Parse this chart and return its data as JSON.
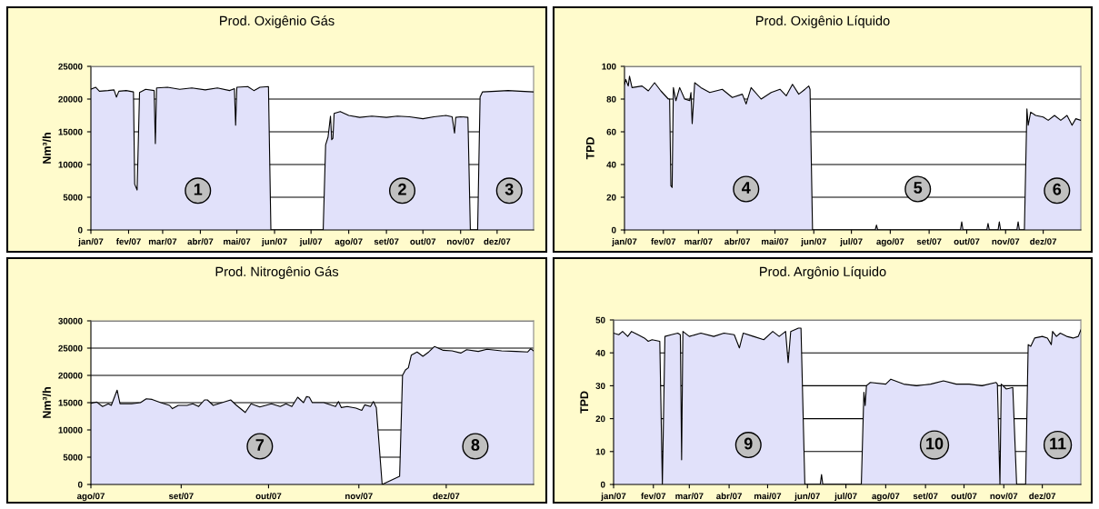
{
  "chart_data": [
    {
      "type": "area",
      "title": "Prod. Oxigênio Gás",
      "ylabel": "Nm³/h",
      "xlim": [
        "2007-01-01",
        "2007-12-31"
      ],
      "ylim": [
        0,
        25000
      ],
      "yticks": [
        0,
        5000,
        10000,
        15000,
        20000,
        25000
      ],
      "xticks": [
        {
          "value": "2007-01-01",
          "label": "jan/07"
        },
        {
          "value": "2007-02-01",
          "label": "fev/07"
        },
        {
          "value": "2007-03-01",
          "label": "mar/07"
        },
        {
          "value": "2007-04-01",
          "label": "abr/07"
        },
        {
          "value": "2007-05-01",
          "label": "mai/07"
        },
        {
          "value": "2007-06-01",
          "label": "jun/07"
        },
        {
          "value": "2007-07-01",
          "label": "jul/07"
        },
        {
          "value": "2007-08-01",
          "label": "ago/07"
        },
        {
          "value": "2007-09-01",
          "label": "set/07"
        },
        {
          "value": "2007-10-01",
          "label": "out/07"
        },
        {
          "value": "2007-11-01",
          "label": "nov/07"
        },
        {
          "value": "2007-12-01",
          "label": "dez/07"
        }
      ],
      "grid": "y",
      "x": [
        "2007-01-01",
        "2007-01-05",
        "2007-01-08",
        "2007-01-15",
        "2007-01-20",
        "2007-01-22",
        "2007-01-24",
        "2007-01-30",
        "2007-02-05",
        "2007-02-06",
        "2007-02-08",
        "2007-02-10",
        "2007-02-15",
        "2007-02-22",
        "2007-02-23",
        "2007-02-24",
        "2007-03-05",
        "2007-03-15",
        "2007-03-25",
        "2007-04-05",
        "2007-04-15",
        "2007-04-25",
        "2007-04-29",
        "2007-04-30",
        "2007-05-01",
        "2007-05-10",
        "2007-05-15",
        "2007-05-20",
        "2007-05-27",
        "2007-05-29",
        "2007-07-11",
        "2007-07-13",
        "2007-07-15",
        "2007-07-17",
        "2007-07-18",
        "2007-07-19",
        "2007-07-20",
        "2007-07-25",
        "2007-08-01",
        "2007-08-10",
        "2007-08-20",
        "2007-09-01",
        "2007-09-10",
        "2007-09-20",
        "2007-10-01",
        "2007-10-10",
        "2007-10-20",
        "2007-10-25",
        "2007-10-27",
        "2007-10-28",
        "2007-11-01",
        "2007-11-07",
        "2007-11-09",
        "2007-11-15",
        "2007-11-17",
        "2007-11-19",
        "2007-11-30",
        "2007-12-10",
        "2007-12-20",
        "2007-12-31"
      ],
      "series": [
        {
          "color": "#e1e1fa",
          "values": [
            21500,
            21800,
            21200,
            21300,
            21400,
            20300,
            21200,
            21300,
            21100,
            7000,
            6100,
            21000,
            21500,
            21300,
            13200,
            21700,
            21800,
            21500,
            21700,
            21400,
            21700,
            21300,
            21600,
            16000,
            21800,
            21900,
            21300,
            21800,
            21900,
            0,
            0,
            13000,
            14200,
            17400,
            13800,
            14000,
            17800,
            18100,
            17500,
            17200,
            17400,
            17200,
            17400,
            17300,
            17000,
            17300,
            17500,
            17300,
            14800,
            17200,
            17300,
            17200,
            0,
            0,
            20300,
            21100,
            21200,
            21300,
            21200,
            21100
          ]
        }
      ],
      "annotations": [
        {
          "text": "1",
          "x": "2007-03-30",
          "y": 6000
        },
        {
          "text": "2",
          "x": "2007-09-14",
          "y": 6000
        },
        {
          "text": "3",
          "x": "2007-12-11",
          "y": 6000
        }
      ]
    },
    {
      "type": "area",
      "title": "Prod. Oxigênio Líquido",
      "ylabel": "TPD",
      "xlim": [
        "2007-01-01",
        "2007-12-31"
      ],
      "ylim": [
        0,
        100
      ],
      "yticks": [
        0,
        20,
        40,
        60,
        80,
        100
      ],
      "xticks": [
        {
          "value": "2007-01-01",
          "label": "jan/07"
        },
        {
          "value": "2007-02-01",
          "label": "fev/07"
        },
        {
          "value": "2007-03-01",
          "label": "mar/07"
        },
        {
          "value": "2007-04-01",
          "label": "abr/07"
        },
        {
          "value": "2007-05-01",
          "label": "mai/07"
        },
        {
          "value": "2007-06-01",
          "label": "jun/07"
        },
        {
          "value": "2007-07-01",
          "label": "jul/07"
        },
        {
          "value": "2007-08-01",
          "label": "ago/07"
        },
        {
          "value": "2007-09-01",
          "label": "set/07"
        },
        {
          "value": "2007-10-01",
          "label": "out/07"
        },
        {
          "value": "2007-11-01",
          "label": "nov/07"
        },
        {
          "value": "2007-12-01",
          "label": "dez/07"
        }
      ],
      "grid": "y",
      "x": [
        "2007-01-01",
        "2007-01-02",
        "2007-01-04",
        "2007-01-05",
        "2007-01-07",
        "2007-01-15",
        "2007-01-20",
        "2007-01-25",
        "2007-01-30",
        "2007-02-05",
        "2007-02-06",
        "2007-02-07",
        "2007-02-08",
        "2007-02-09",
        "2007-02-11",
        "2007-02-14",
        "2007-02-18",
        "2007-02-22",
        "2007-02-23",
        "2007-02-24",
        "2007-02-26",
        "2007-03-03",
        "2007-03-10",
        "2007-03-20",
        "2007-03-28",
        "2007-04-05",
        "2007-04-08",
        "2007-04-12",
        "2007-04-20",
        "2007-04-28",
        "2007-05-05",
        "2007-05-10",
        "2007-05-15",
        "2007-05-20",
        "2007-05-25",
        "2007-05-28",
        "2007-05-29",
        "2007-05-31",
        "2007-07-20",
        "2007-07-21",
        "2007-07-22",
        "2007-09-26",
        "2007-09-27",
        "2007-09-28",
        "2007-10-17",
        "2007-10-18",
        "2007-10-19",
        "2007-10-26",
        "2007-10-27",
        "2007-10-28",
        "2007-11-10",
        "2007-11-11",
        "2007-11-12",
        "2007-11-16",
        "2007-11-18",
        "2007-11-19",
        "2007-11-21",
        "2007-11-25",
        "2007-12-01",
        "2007-12-05",
        "2007-12-10",
        "2007-12-15",
        "2007-12-20",
        "2007-12-24",
        "2007-12-27",
        "2007-12-31"
      ],
      "series": [
        {
          "color": "#e1e1fa",
          "values": [
            89,
            92,
            88,
            94,
            87,
            88,
            85,
            90,
            85,
            80,
            80,
            27,
            26,
            87,
            79,
            87,
            80,
            79,
            84,
            65,
            90,
            87,
            84,
            86,
            81,
            83,
            77,
            87,
            80,
            84,
            86,
            82,
            89,
            83,
            86,
            88,
            86,
            0,
            0,
            3,
            0,
            0,
            5,
            0,
            0,
            4,
            0,
            0,
            5,
            0,
            0,
            5,
            0,
            0,
            74,
            64,
            72,
            70,
            69,
            67,
            70,
            67,
            70,
            64,
            68,
            67
          ]
        }
      ],
      "annotations": [
        {
          "text": "4",
          "x": "2007-04-08",
          "y": 25
        },
        {
          "text": "5",
          "x": "2007-08-23",
          "y": 25
        },
        {
          "text": "6",
          "x": "2007-12-12",
          "y": 24
        }
      ]
    },
    {
      "type": "area",
      "title": "Prod. Nitrogênio Gás",
      "ylabel": "Nm³/h",
      "xlim": [
        "2007-08-01",
        "2007-12-31"
      ],
      "ylim": [
        0,
        30000
      ],
      "yticks": [
        0,
        5000,
        10000,
        15000,
        20000,
        25000,
        30000
      ],
      "xticks": [
        {
          "value": "2007-08-01",
          "label": "ago/07"
        },
        {
          "value": "2007-09-01",
          "label": "set/07"
        },
        {
          "value": "2007-10-01",
          "label": "out/07"
        },
        {
          "value": "2007-11-01",
          "label": "nov/07"
        },
        {
          "value": "2007-12-01",
          "label": "dez/07"
        }
      ],
      "grid": "y",
      "x": [
        "2007-08-01",
        "2007-08-03",
        "2007-08-05",
        "2007-08-07",
        "2007-08-08",
        "2007-08-10",
        "2007-08-11",
        "2007-08-15",
        "2007-08-18",
        "2007-08-20",
        "2007-08-22",
        "2007-08-25",
        "2007-08-28",
        "2007-08-29",
        "2007-08-31",
        "2007-09-03",
        "2007-09-05",
        "2007-09-07",
        "2007-09-09",
        "2007-09-10",
        "2007-09-12",
        "2007-09-15",
        "2007-09-18",
        "2007-09-20",
        "2007-09-23",
        "2007-09-25",
        "2007-09-28",
        "2007-10-02",
        "2007-10-05",
        "2007-10-07",
        "2007-10-09",
        "2007-10-11",
        "2007-10-13",
        "2007-10-14",
        "2007-10-15",
        "2007-10-16",
        "2007-10-20",
        "2007-10-24",
        "2007-10-25",
        "2007-10-26",
        "2007-10-28",
        "2007-10-31",
        "2007-11-02",
        "2007-11-03",
        "2007-11-05",
        "2007-11-06",
        "2007-11-07",
        "2007-11-09",
        "2007-11-15",
        "2007-11-16",
        "2007-11-17",
        "2007-11-18",
        "2007-11-19",
        "2007-11-21",
        "2007-11-23",
        "2007-11-25",
        "2007-11-27",
        "2007-11-30",
        "2007-12-03",
        "2007-12-06",
        "2007-12-08",
        "2007-12-12",
        "2007-12-15",
        "2007-12-20",
        "2007-12-25",
        "2007-12-29",
        "2007-12-30",
        "2007-12-31"
      ],
      "series": [
        {
          "color": "#e1e1fa",
          "values": [
            14900,
            15100,
            14300,
            14800,
            14500,
            17300,
            14800,
            14800,
            15000,
            15700,
            15600,
            15000,
            14500,
            13900,
            14500,
            14500,
            14800,
            14300,
            15500,
            15500,
            14500,
            15000,
            15500,
            14500,
            13200,
            14800,
            14200,
            14800,
            14300,
            14800,
            14300,
            16000,
            15000,
            16100,
            16000,
            15000,
            15000,
            14300,
            15200,
            14100,
            14300,
            14000,
            13600,
            14600,
            14300,
            15200,
            14100,
            0,
            1500,
            20000,
            21000,
            21400,
            23700,
            24300,
            23500,
            24300,
            25300,
            24600,
            24500,
            24100,
            24700,
            24400,
            24800,
            24500,
            24400,
            24300,
            24900,
            24500
          ]
        }
      ],
      "annotations": [
        {
          "text": "7",
          "x": "2007-09-28",
          "y": 7000
        },
        {
          "text": "8",
          "x": "2007-12-11",
          "y": 7000
        }
      ]
    },
    {
      "type": "area",
      "title": "Prod. Argônio Líquido",
      "ylabel": "TPD",
      "xlim": [
        "2007-01-01",
        "2007-12-31"
      ],
      "ylim": [
        0,
        50
      ],
      "yticks": [
        0,
        10,
        20,
        30,
        40,
        50
      ],
      "xticks": [
        {
          "value": "2007-01-01",
          "label": "jan/07"
        },
        {
          "value": "2007-02-01",
          "label": "fev/07"
        },
        {
          "value": "2007-03-01",
          "label": "mar/07"
        },
        {
          "value": "2007-04-01",
          "label": "abr/07"
        },
        {
          "value": "2007-05-01",
          "label": "mai/07"
        },
        {
          "value": "2007-06-01",
          "label": "jun/07"
        },
        {
          "value": "2007-07-01",
          "label": "jul/07"
        },
        {
          "value": "2007-08-01",
          "label": "ago/07"
        },
        {
          "value": "2007-09-01",
          "label": "set/07"
        },
        {
          "value": "2007-10-01",
          "label": "out/07"
        },
        {
          "value": "2007-11-01",
          "label": "nov/07"
        },
        {
          "value": "2007-12-01",
          "label": "dez/07"
        }
      ],
      "grid": "y",
      "x": [
        "2007-01-01",
        "2007-01-05",
        "2007-01-08",
        "2007-01-12",
        "2007-01-15",
        "2007-01-20",
        "2007-01-25",
        "2007-01-28",
        "2007-01-31",
        "2007-02-06",
        "2007-02-08",
        "2007-02-10",
        "2007-02-15",
        "2007-02-20",
        "2007-02-22",
        "2007-02-23",
        "2007-02-24",
        "2007-03-01",
        "2007-03-10",
        "2007-03-20",
        "2007-03-28",
        "2007-04-05",
        "2007-04-09",
        "2007-04-12",
        "2007-04-20",
        "2007-04-28",
        "2007-05-05",
        "2007-05-10",
        "2007-05-15",
        "2007-05-17",
        "2007-05-19",
        "2007-05-25",
        "2007-05-27",
        "2007-05-30",
        "2007-06-11",
        "2007-06-12",
        "2007-06-13",
        "2007-07-13",
        "2007-07-15",
        "2007-07-16",
        "2007-07-17",
        "2007-07-20",
        "2007-08-01",
        "2007-08-05",
        "2007-08-15",
        "2007-08-25",
        "2007-09-05",
        "2007-09-15",
        "2007-09-25",
        "2007-10-05",
        "2007-10-15",
        "2007-10-26",
        "2007-10-27",
        "2007-10-29",
        "2007-10-30",
        "2007-11-03",
        "2007-11-08",
        "2007-11-11",
        "2007-11-18",
        "2007-11-20",
        "2007-11-22",
        "2007-11-25",
        "2007-12-01",
        "2007-12-05",
        "2007-12-08",
        "2007-12-09",
        "2007-12-12",
        "2007-12-15",
        "2007-12-20",
        "2007-12-25",
        "2007-12-29",
        "2007-12-31"
      ],
      "series": [
        {
          "color": "#e1e1fa",
          "values": [
            46,
            45.5,
            46.5,
            45,
            46.5,
            45.5,
            44.5,
            43.5,
            44,
            43.5,
            0,
            45,
            45.5,
            46,
            45.5,
            7.5,
            46.5,
            45,
            46,
            45,
            46,
            45.5,
            41.5,
            46,
            45,
            44,
            46.5,
            45,
            46.5,
            37,
            46.5,
            47.5,
            47.5,
            0,
            0,
            3,
            0,
            0,
            28,
            24,
            30,
            31,
            30.5,
            32,
            30.5,
            30,
            30.5,
            31.5,
            30.5,
            30.5,
            30,
            31,
            30.5,
            0,
            30.5,
            29,
            29.5,
            0,
            0,
            42.5,
            42,
            44.5,
            45,
            44.5,
            42.5,
            46.5,
            45,
            46,
            45,
            44.5,
            45,
            47
          ]
        }
      ],
      "annotations": [
        {
          "text": "9",
          "x": "2007-04-16",
          "y": 12
        },
        {
          "text": "10",
          "x": "2007-09-08",
          "y": 12
        },
        {
          "text": "11",
          "x": "2007-12-13",
          "y": 12
        }
      ]
    }
  ]
}
